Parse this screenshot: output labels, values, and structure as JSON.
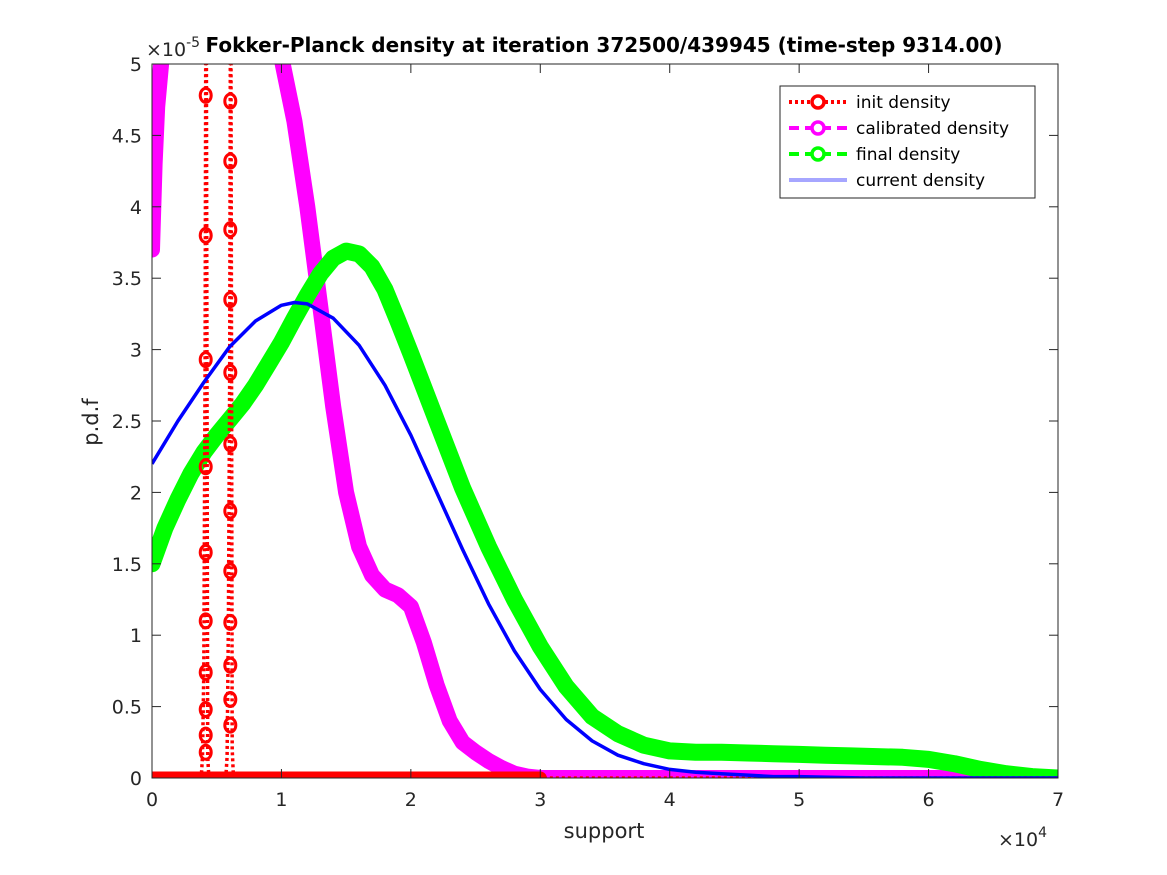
{
  "chart_data": {
    "type": "line",
    "title": "Fokker-Planck density at iteration 372500/439945 (time-step 9314.00)",
    "xlabel": "support",
    "ylabel": "p.d.f",
    "xlim": [
      0,
      70000
    ],
    "ylim": [
      0,
      5e-05
    ],
    "x_exponent_label": "×10^4",
    "y_exponent_label": "×10^-5",
    "x_ticks": [
      {
        "value": 0,
        "label": "0"
      },
      {
        "value": 10000,
        "label": "1"
      },
      {
        "value": 20000,
        "label": "2"
      },
      {
        "value": 30000,
        "label": "3"
      },
      {
        "value": 40000,
        "label": "4"
      },
      {
        "value": 50000,
        "label": "5"
      },
      {
        "value": 60000,
        "label": "6"
      },
      {
        "value": 70000,
        "label": "7"
      }
    ],
    "y_ticks": [
      {
        "value": 0,
        "label": "0"
      },
      {
        "value": 5e-06,
        "label": "0.5"
      },
      {
        "value": 1e-05,
        "label": "1"
      },
      {
        "value": 1.5e-05,
        "label": "1.5"
      },
      {
        "value": 2e-05,
        "label": "2"
      },
      {
        "value": 2.5e-05,
        "label": "2.5"
      },
      {
        "value": 3e-05,
        "label": "3"
      },
      {
        "value": 3.5e-05,
        "label": "3.5"
      },
      {
        "value": 4e-05,
        "label": "4"
      },
      {
        "value": 4.5e-05,
        "label": "4.5"
      },
      {
        "value": 5e-05,
        "label": "5"
      }
    ],
    "grid": false,
    "legend_position": "top-right",
    "series": [
      {
        "name": "init density",
        "color": "#ff0000",
        "style": "dotted-circles",
        "x": [
          0,
          3800,
          3900,
          4000,
          4100,
          4150,
          4200,
          4300,
          4400,
          5700,
          5800,
          5900,
          6000,
          6050,
          6100,
          6200,
          6300,
          70000
        ],
        "y": [
          0,
          0,
          1.5e-06,
          7.4e-06,
          2.9e-05,
          5e-05,
          5e-05,
          1.5e-06,
          0,
          0,
          1.5e-06,
          1.1e-05,
          2.84e-05,
          5e-05,
          5e-05,
          2e-06,
          0,
          0
        ],
        "markers_x": [
          4150,
          4150,
          4150,
          4150,
          4150,
          4150,
          4150,
          4150,
          4150,
          4150,
          6050,
          6050,
          6050,
          6050,
          6050,
          6050,
          6050,
          6050,
          6050,
          6050,
          6050,
          6050
        ],
        "markers_y": [
          4.78e-05,
          3.8e-05,
          2.93e-05,
          2.18e-05,
          1.58e-05,
          1.1e-05,
          7.4e-06,
          4.8e-06,
          3e-06,
          1.8e-06,
          4.74e-05,
          4.32e-05,
          3.84e-05,
          3.35e-05,
          2.84e-05,
          2.34e-05,
          1.87e-05,
          1.45e-05,
          1.09e-05,
          7.9e-06,
          5.5e-06,
          3.7e-06
        ]
      },
      {
        "name": "calibrated density",
        "color": "#ff00ff",
        "style": "dashed-circles",
        "segments": [
          {
            "x": [
              0,
              200,
              400,
              700
            ],
            "y": [
              3.7e-05,
              4.3e-05,
              4.7e-05,
              5e-05
            ]
          },
          {
            "x": [
              10100,
              11000,
              12000,
              13000,
              14000,
              15000,
              16000,
              17000,
              18000,
              19000,
              20000,
              21000,
              22000,
              23000,
              24000,
              25000,
              26000,
              27000,
              28000,
              29000,
              30000,
              35000,
              40000,
              50000,
              60000,
              70000
            ],
            "y": [
              5e-05,
              4.6e-05,
              4e-05,
              3.3e-05,
              2.6e-05,
              2e-05,
              1.62e-05,
              1.42e-05,
              1.32e-05,
              1.28e-05,
              1.2e-05,
              9.5e-06,
              6.5e-06,
              4e-06,
              2.5e-06,
              1.8e-06,
              1.2e-06,
              7e-07,
              3e-07,
              1e-07,
              0,
              0,
              0,
              0,
              0,
              0
            ]
          }
        ]
      },
      {
        "name": "final density",
        "color": "#00ff00",
        "style": "dashed-circles",
        "x": [
          0,
          1000,
          2000,
          3000,
          4000,
          5000,
          6000,
          7000,
          8000,
          9000,
          10000,
          11000,
          12000,
          13000,
          14000,
          15000,
          16000,
          17000,
          18000,
          19000,
          20000,
          22000,
          24000,
          26000,
          28000,
          30000,
          32000,
          34000,
          36000,
          38000,
          40000,
          42000,
          44000,
          46000,
          48000,
          50000,
          52000,
          54000,
          56000,
          58000,
          60000,
          62000,
          64000,
          66000,
          68000,
          70000
        ],
        "y": [
          1.5e-05,
          1.75e-05,
          1.95e-05,
          2.13e-05,
          2.28e-05,
          2.4e-05,
          2.51e-05,
          2.62e-05,
          2.75e-05,
          2.9e-05,
          3.05e-05,
          3.22e-05,
          3.38e-05,
          3.53e-05,
          3.64e-05,
          3.69e-05,
          3.67e-05,
          3.58e-05,
          3.42e-05,
          3.2e-05,
          2.97e-05,
          2.5e-05,
          2.03e-05,
          1.62e-05,
          1.25e-05,
          9.2e-06,
          6.4e-06,
          4.3e-06,
          3.1e-06,
          2.3e-06,
          1.9e-06,
          1.8e-06,
          1.8e-06,
          1.75e-06,
          1.7e-06,
          1.65e-06,
          1.6e-06,
          1.55e-06,
          1.5e-06,
          1.45e-06,
          1.3e-06,
          1e-06,
          6e-07,
          3e-07,
          1e-07,
          0
        ]
      },
      {
        "name": "current density",
        "color": "#0000ff",
        "style": "solid",
        "legend_color": "#a6a6ff",
        "legend_text_color": "#a6a6a6",
        "x": [
          0,
          2000,
          4000,
          6000,
          8000,
          10000,
          11000,
          12000,
          14000,
          16000,
          18000,
          20000,
          22000,
          24000,
          26000,
          28000,
          30000,
          32000,
          34000,
          36000,
          38000,
          40000,
          42000,
          44000,
          46000,
          48000,
          50000,
          55000,
          60000,
          65000,
          70000
        ],
        "y": [
          2.2e-05,
          2.5e-05,
          2.77e-05,
          3.02e-05,
          3.2e-05,
          3.31e-05,
          3.33e-05,
          3.32e-05,
          3.22e-05,
          3.03e-05,
          2.75e-05,
          2.4e-05,
          2e-05,
          1.6e-05,
          1.22e-05,
          8.9e-06,
          6.2e-06,
          4.1e-06,
          2.6e-06,
          1.6e-06,
          1e-06,
          6e-07,
          4e-07,
          3e-07,
          2e-07,
          1e-07,
          1e-07,
          0,
          0,
          0,
          0
        ]
      }
    ]
  }
}
